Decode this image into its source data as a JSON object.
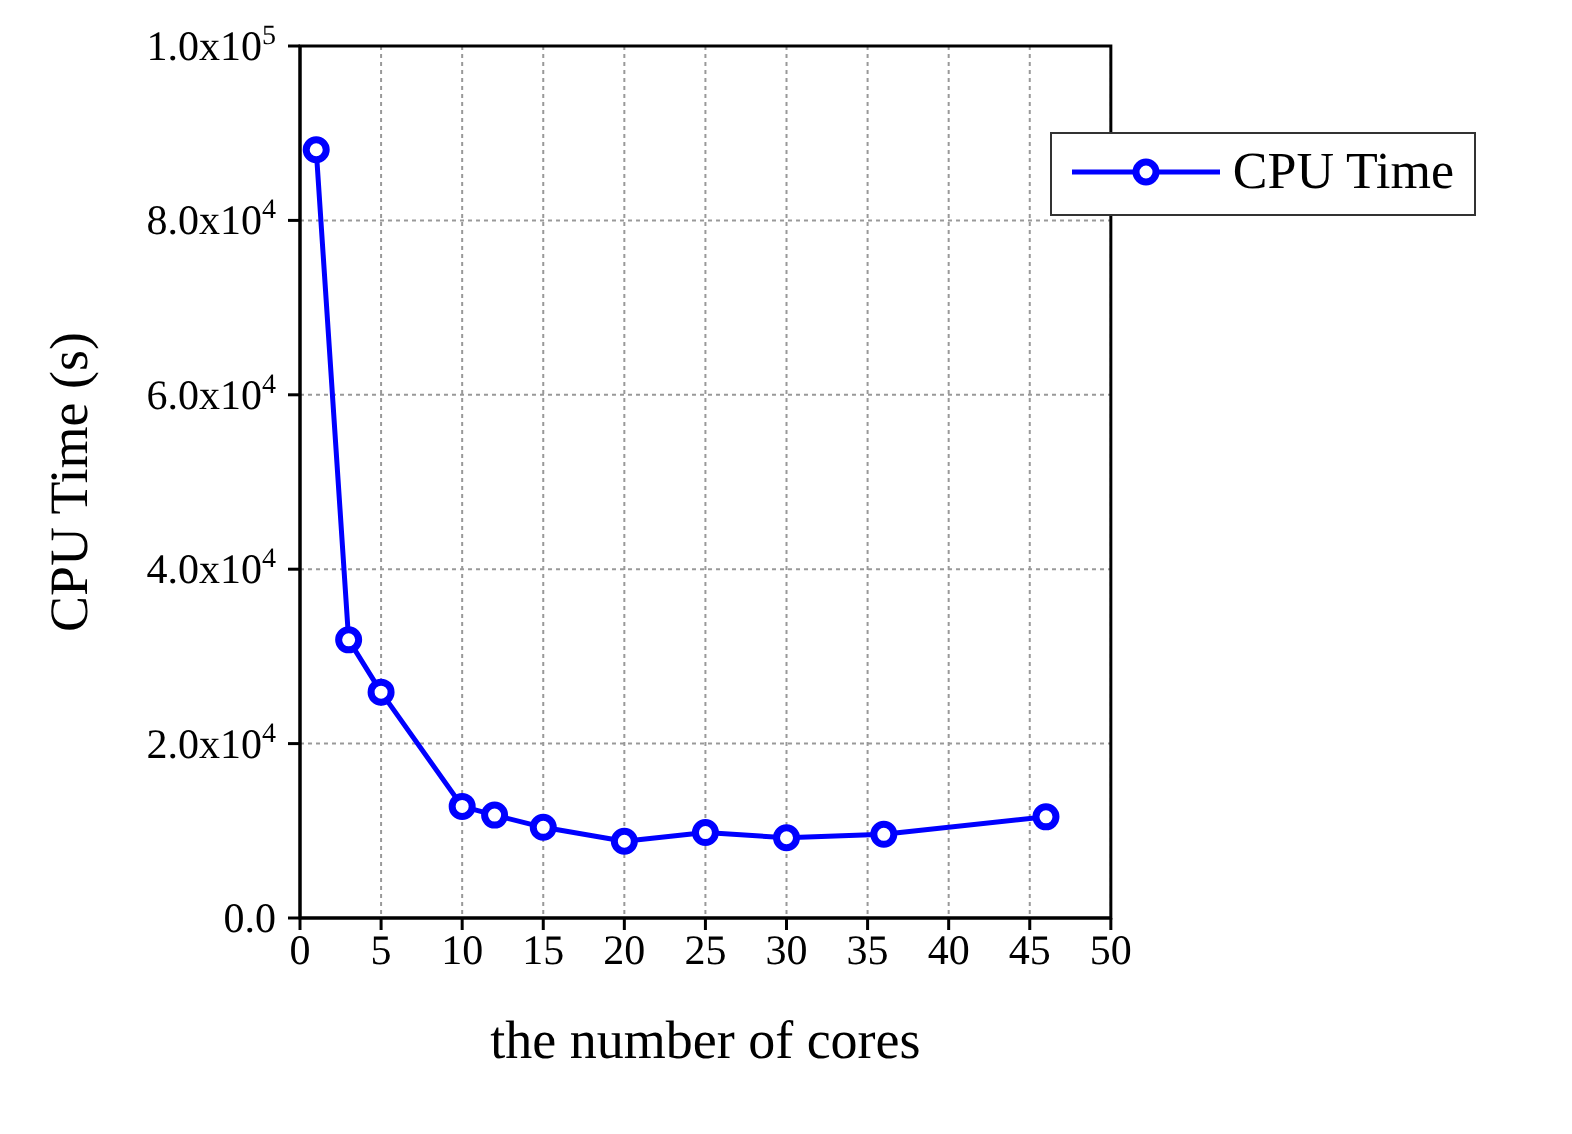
{
  "chart_data": {
    "type": "line",
    "xlabel": "the number of cores",
    "ylabel": "CPU Time (s)",
    "x": [
      1,
      3,
      5,
      10,
      12,
      15,
      20,
      25,
      30,
      36,
      46
    ],
    "series": [
      {
        "name": "CPU Time",
        "color": "#0000ff",
        "values": [
          88100,
          31900,
          25900,
          12800,
          11800,
          10400,
          8800,
          9800,
          9200,
          9600,
          11600
        ]
      }
    ],
    "xlim": [
      0,
      50
    ],
    "xticks": [
      0,
      5,
      10,
      15,
      20,
      25,
      30,
      35,
      40,
      45,
      50
    ],
    "ylim": [
      0,
      100000
    ],
    "yticks": [
      {
        "value": 0,
        "label": "0.0"
      },
      {
        "value": 20000,
        "label": "2.0x10$^{4}$"
      },
      {
        "value": 40000,
        "label": "4.0x10$^{4}$"
      },
      {
        "value": 60000,
        "label": "6.0x10$^{4}$"
      },
      {
        "value": 80000,
        "label": "8.0x10$^{4}$"
      },
      {
        "value": 100000,
        "label": "1.0x10$^{5}$"
      }
    ],
    "grid": true,
    "legend": "top right",
    "marker": "circle",
    "line_style": "solid"
  }
}
